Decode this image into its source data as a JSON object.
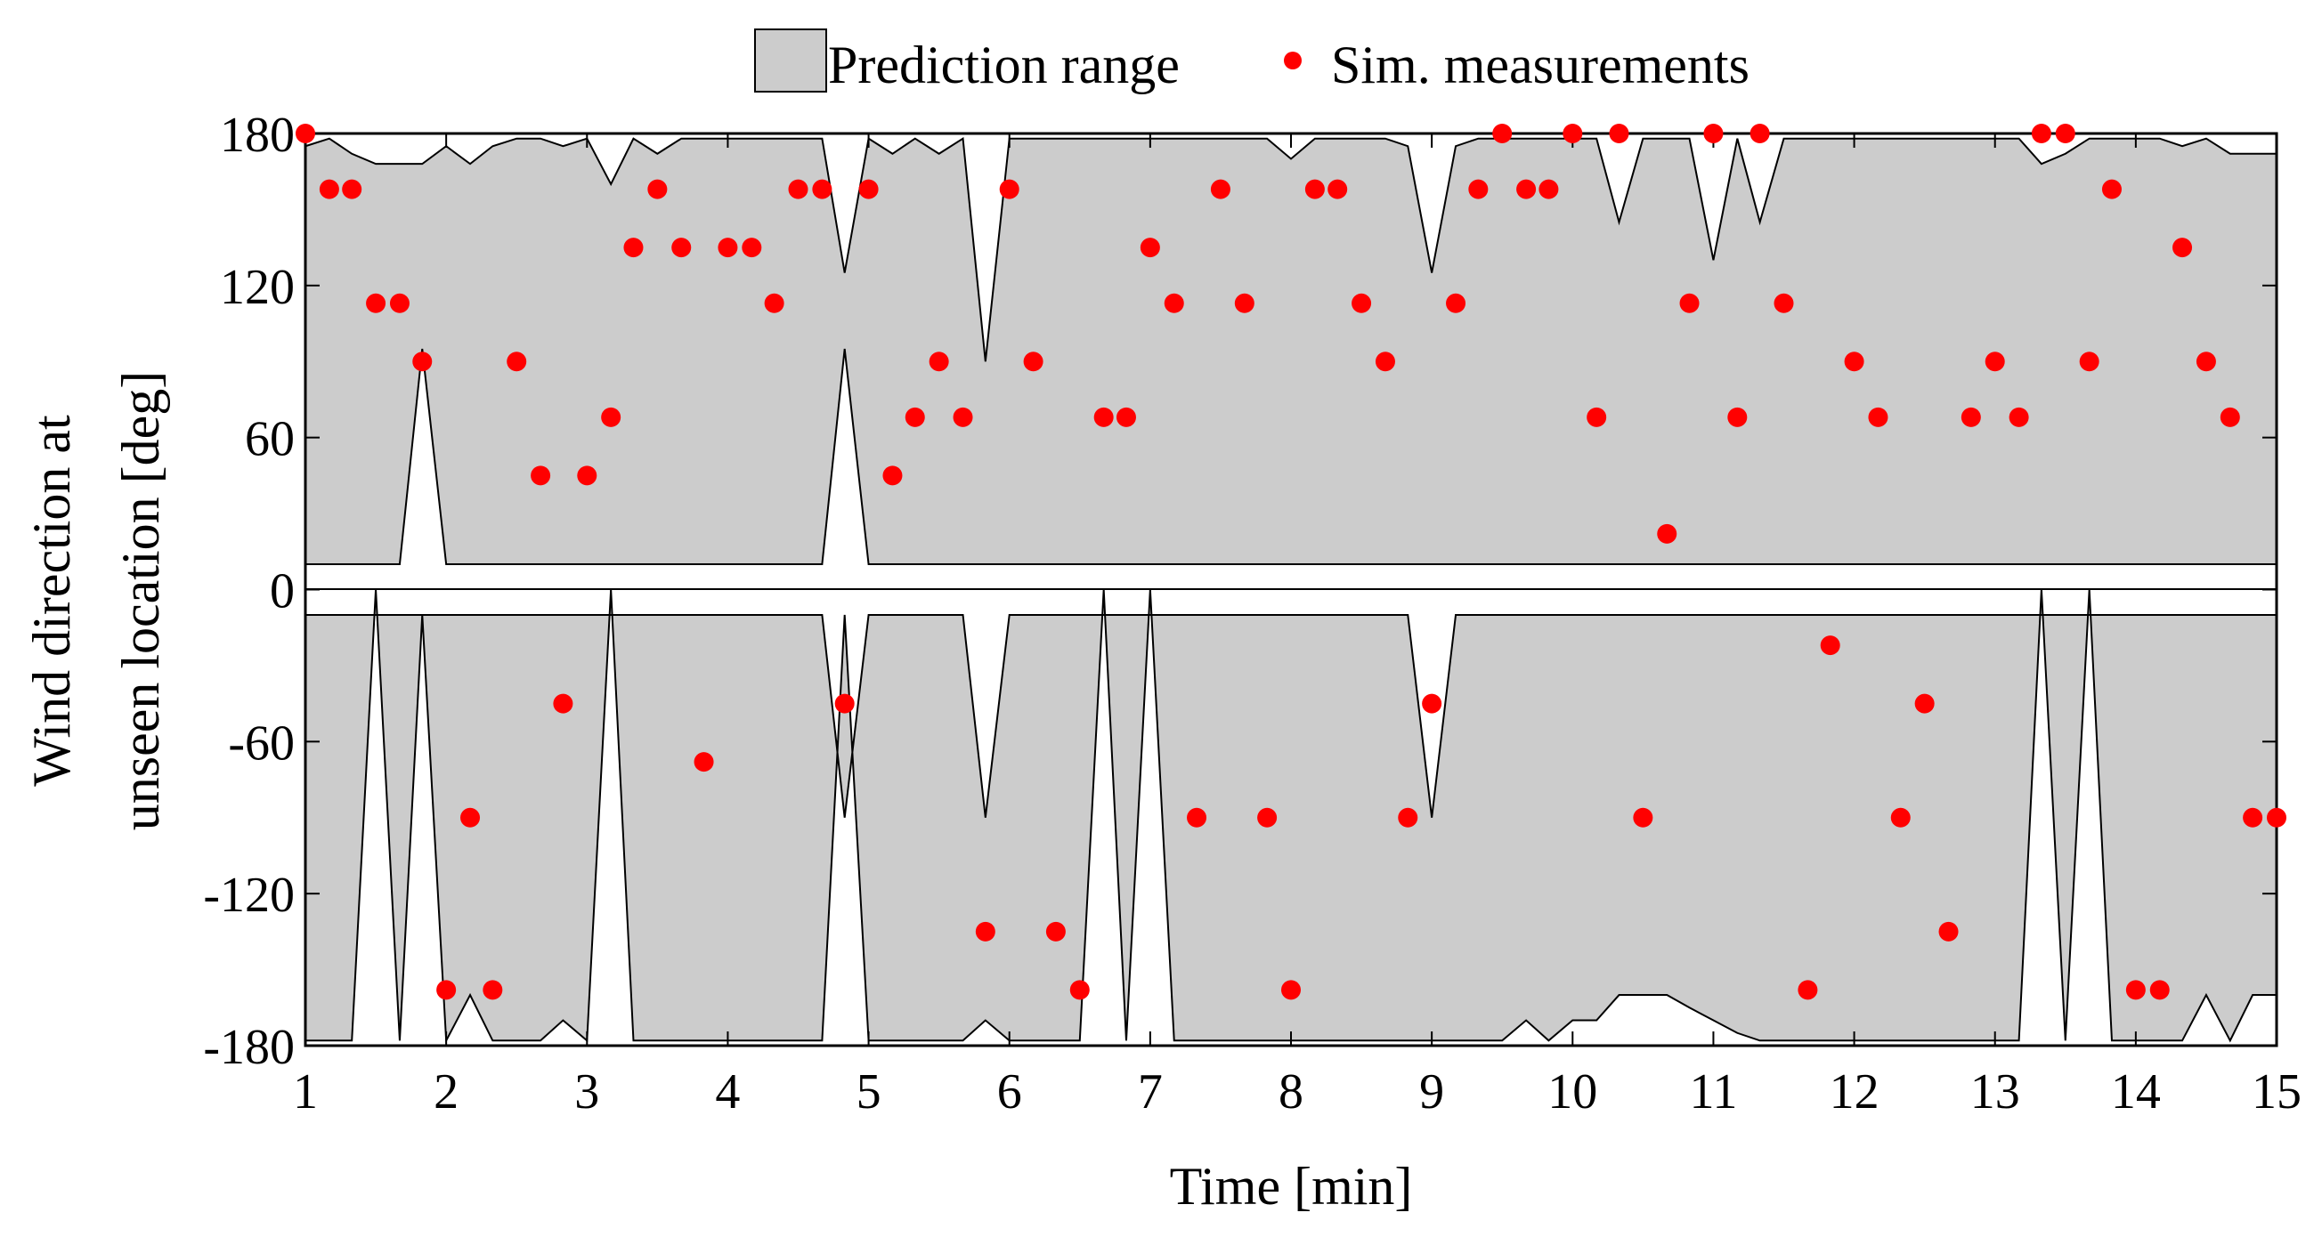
{
  "chart_data": {
    "type": "scatter",
    "xlabel": "Time [min]",
    "ylabel_lines": [
      "Wind direction at",
      "unseen location [deg]"
    ],
    "xlim": [
      1,
      15
    ],
    "ylim": [
      -180,
      180
    ],
    "x_ticks": [
      1,
      2,
      3,
      4,
      5,
      6,
      7,
      8,
      9,
      10,
      11,
      12,
      13,
      14,
      15
    ],
    "y_ticks": [
      -180,
      -120,
      -60,
      0,
      60,
      120,
      180
    ],
    "grid": false,
    "legend_position": "top",
    "legend": [
      {
        "label": "Prediction range",
        "kind": "area",
        "color": "#cccccc"
      },
      {
        "label": "Sim. measurements",
        "kind": "marker",
        "color": "#ff0000"
      }
    ],
    "series": [
      {
        "name": "Sim. measurements",
        "color": "#ff0000",
        "points": [
          [
            1.0,
            180
          ],
          [
            1.17,
            158
          ],
          [
            1.33,
            158
          ],
          [
            1.5,
            113
          ],
          [
            1.67,
            113
          ],
          [
            1.83,
            90
          ],
          [
            2.0,
            -158
          ],
          [
            2.17,
            -90
          ],
          [
            2.33,
            -158
          ],
          [
            2.5,
            90
          ],
          [
            2.67,
            45
          ],
          [
            2.83,
            -45
          ],
          [
            3.0,
            45
          ],
          [
            3.17,
            68
          ],
          [
            3.33,
            135
          ],
          [
            3.5,
            158
          ],
          [
            3.67,
            135
          ],
          [
            3.83,
            -68
          ],
          [
            4.0,
            135
          ],
          [
            4.17,
            135
          ],
          [
            4.33,
            113
          ],
          [
            4.5,
            158
          ],
          [
            4.67,
            158
          ],
          [
            4.83,
            -45
          ],
          [
            5.0,
            158
          ],
          [
            5.17,
            45
          ],
          [
            5.33,
            68
          ],
          [
            5.5,
            90
          ],
          [
            5.67,
            68
          ],
          [
            5.83,
            -135
          ],
          [
            6.0,
            158
          ],
          [
            6.17,
            90
          ],
          [
            6.33,
            -135
          ],
          [
            6.5,
            -158
          ],
          [
            6.67,
            68
          ],
          [
            6.83,
            68
          ],
          [
            7.0,
            135
          ],
          [
            7.17,
            113
          ],
          [
            7.33,
            -90
          ],
          [
            7.5,
            158
          ],
          [
            7.67,
            113
          ],
          [
            7.83,
            -90
          ],
          [
            8.0,
            -158
          ],
          [
            8.17,
            158
          ],
          [
            8.33,
            158
          ],
          [
            8.5,
            113
          ],
          [
            8.67,
            90
          ],
          [
            8.83,
            -90
          ],
          [
            9.0,
            -45
          ],
          [
            9.17,
            113
          ],
          [
            9.33,
            158
          ],
          [
            9.5,
            180
          ],
          [
            9.67,
            158
          ],
          [
            9.83,
            158
          ],
          [
            10.0,
            180
          ],
          [
            10.17,
            68
          ],
          [
            10.33,
            180
          ],
          [
            10.5,
            -90
          ],
          [
            10.67,
            22
          ],
          [
            10.83,
            113
          ],
          [
            11.0,
            180
          ],
          [
            11.17,
            68
          ],
          [
            11.33,
            180
          ],
          [
            11.5,
            113
          ],
          [
            11.67,
            -158
          ],
          [
            11.83,
            -22
          ],
          [
            12.0,
            90
          ],
          [
            12.17,
            68
          ],
          [
            12.33,
            -90
          ],
          [
            12.5,
            -45
          ],
          [
            12.67,
            -135
          ],
          [
            12.83,
            68
          ],
          [
            13.0,
            90
          ],
          [
            13.17,
            68
          ],
          [
            13.33,
            180
          ],
          [
            13.5,
            180
          ],
          [
            13.67,
            90
          ],
          [
            13.83,
            158
          ],
          [
            14.0,
            -158
          ],
          [
            14.17,
            -158
          ],
          [
            14.33,
            135
          ],
          [
            14.5,
            90
          ],
          [
            14.67,
            68
          ],
          [
            14.83,
            -90
          ],
          [
            15.0,
            -90
          ]
        ]
      }
    ],
    "prediction_range": {
      "name": "Prediction range",
      "color": "#cccccc",
      "upper": {
        "x": [
          1.0,
          1.17,
          1.33,
          1.5,
          1.67,
          1.83,
          2.0,
          2.17,
          2.33,
          2.5,
          2.67,
          2.83,
          3.0,
          3.17,
          3.33,
          3.5,
          3.67,
          3.83,
          4.0,
          4.17,
          4.33,
          4.5,
          4.67,
          4.83,
          5.0,
          5.17,
          5.33,
          5.5,
          5.67,
          5.83,
          6.0,
          6.17,
          6.33,
          6.5,
          6.67,
          6.83,
          7.0,
          7.17,
          7.33,
          7.5,
          7.67,
          7.83,
          8.0,
          8.17,
          8.33,
          8.5,
          8.67,
          8.83,
          9.0,
          9.17,
          9.33,
          9.5,
          9.67,
          9.83,
          10.0,
          10.17,
          10.33,
          10.5,
          10.67,
          10.83,
          11.0,
          11.17,
          11.33,
          11.5,
          11.67,
          11.83,
          12.0,
          12.17,
          12.33,
          12.5,
          12.67,
          12.83,
          13.0,
          13.17,
          13.33,
          13.5,
          13.67,
          13.83,
          14.0,
          14.17,
          14.33,
          14.5,
          14.67,
          14.83,
          15.0
        ],
        "y": [
          175,
          178,
          172,
          168,
          168,
          168,
          175,
          168,
          175,
          178,
          178,
          175,
          178,
          160,
          178,
          172,
          178,
          178,
          178,
          178,
          178,
          178,
          178,
          125,
          178,
          172,
          178,
          172,
          178,
          90,
          178,
          178,
          178,
          178,
          178,
          178,
          178,
          178,
          178,
          178,
          178,
          178,
          170,
          178,
          178,
          178,
          178,
          175,
          125,
          175,
          178,
          178,
          178,
          178,
          178,
          178,
          145,
          178,
          178,
          178,
          130,
          178,
          145,
          178,
          178,
          178,
          178,
          178,
          178,
          178,
          178,
          178,
          178,
          178,
          168,
          172,
          178,
          178,
          178,
          178,
          175,
          178,
          172,
          172,
          172
        ]
      },
      "lower": {
        "x": [
          1.0,
          1.17,
          1.33,
          1.5,
          1.67,
          1.83,
          2.0,
          2.17,
          2.33,
          2.5,
          2.67,
          2.83,
          3.0,
          3.17,
          3.33,
          3.5,
          3.67,
          3.83,
          4.0,
          4.17,
          4.33,
          4.5,
          4.67,
          4.83,
          5.0,
          5.17,
          5.33,
          5.5,
          5.67,
          5.83,
          6.0,
          6.17,
          6.33,
          6.5,
          6.67,
          6.83,
          7.0,
          7.17,
          7.33,
          7.5,
          7.67,
          7.83,
          8.0,
          8.17,
          8.33,
          8.5,
          8.67,
          8.83,
          9.0,
          9.17,
          9.33,
          9.5,
          9.67,
          9.83,
          10.0,
          10.17,
          10.33,
          10.5,
          10.67,
          10.83,
          11.0,
          11.17,
          11.33,
          11.5,
          11.67,
          11.83,
          12.0,
          12.17,
          12.33,
          12.5,
          12.67,
          12.83,
          13.0,
          13.17,
          13.33,
          13.5,
          13.67,
          13.83,
          14.0,
          14.17,
          14.33,
          14.5,
          14.67,
          14.83,
          15.0
        ],
        "y": [
          -178,
          -178,
          -178,
          0,
          -178,
          -10,
          -178,
          -160,
          -178,
          -178,
          -178,
          -170,
          -178,
          0,
          -178,
          -178,
          -178,
          -178,
          -178,
          -178,
          -178,
          -178,
          -178,
          -10,
          -178,
          -178,
          -178,
          -178,
          -178,
          -170,
          -178,
          -178,
          -178,
          -178,
          0,
          -178,
          0,
          -178,
          -178,
          -178,
          -178,
          -178,
          -178,
          -178,
          -178,
          -178,
          -178,
          -178,
          -178,
          -178,
          -178,
          -178,
          -170,
          -178,
          -170,
          -170,
          -160,
          -160,
          -160,
          -165,
          -170,
          -175,
          -178,
          -178,
          -178,
          -178,
          -178,
          -178,
          -178,
          -178,
          -178,
          -178,
          -178,
          -178,
          0,
          -178,
          0,
          -178,
          -178,
          -178,
          -178,
          -160,
          -178,
          -160,
          -160
        ]
      }
    }
  }
}
